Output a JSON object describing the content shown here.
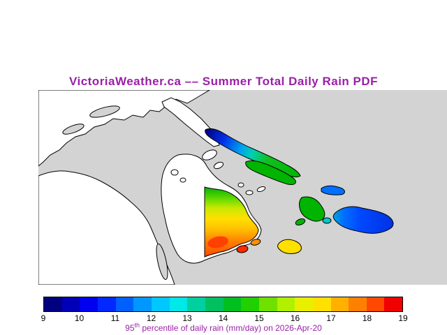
{
  "title": "VictoriaWeather.ca –– Summer Total Daily Rain PDF",
  "theme": {
    "title_color": "#9a1fa8",
    "caption_color": "#9a1fa8",
    "tick_color": "#000000",
    "background": "#ffffff"
  },
  "map": {
    "sea_color": "#d3d3d3",
    "land_color": "#ffffff",
    "coast_color": "#000000",
    "region_colors": {
      "green": "#00b400",
      "yellow": "#ffe000",
      "orange": "#ff9000",
      "red": "#ff2800",
      "red_orange": "#ff4000",
      "blue": "#0070ff",
      "cyan": "#00c8c8"
    },
    "gradients": {
      "island_chain": [
        "#000080",
        "#0030e8",
        "#00a0f0",
        "#00d0b0",
        "#10c020",
        "#00b400"
      ],
      "rain_island": [
        "#00b400",
        "#60d800",
        "#c8e800",
        "#ffe000",
        "#ffc000",
        "#ff8000",
        "#ff4800"
      ],
      "blue_island": [
        "#00b0d0",
        "#0070ff",
        "#0048ff",
        "#0030e0"
      ]
    }
  },
  "colorbar": {
    "min": 9,
    "max": 19,
    "ticks": [
      "9",
      "10",
      "11",
      "12",
      "13",
      "14",
      "15",
      "16",
      "17",
      "18",
      "19"
    ],
    "segments": [
      "#000080",
      "#0000b8",
      "#0000f0",
      "#0028ff",
      "#0060ff",
      "#0098ff",
      "#00c8ff",
      "#00e8e8",
      "#00d0a0",
      "#00c060",
      "#00c020",
      "#20d000",
      "#70e000",
      "#b0f000",
      "#e8f000",
      "#ffe000",
      "#ffb000",
      "#ff8000",
      "#ff4800",
      "#f00000"
    ]
  },
  "caption": {
    "value": "95",
    "superscript": "th",
    "rest": " percentile of daily rain (mm/day) on 2026-Apr-20"
  },
  "chart_data": {
    "type": "heatmap",
    "title": "VictoriaWeather.ca –– Summer Total Daily Rain PDF",
    "legend_label": "95th percentile of daily rain (mm/day) on 2026-Apr-20",
    "colorbar_range": [
      9,
      19
    ],
    "colorbar_ticks": [
      9,
      10,
      11,
      12,
      13,
      14,
      15,
      16,
      17,
      18,
      19
    ]
  }
}
